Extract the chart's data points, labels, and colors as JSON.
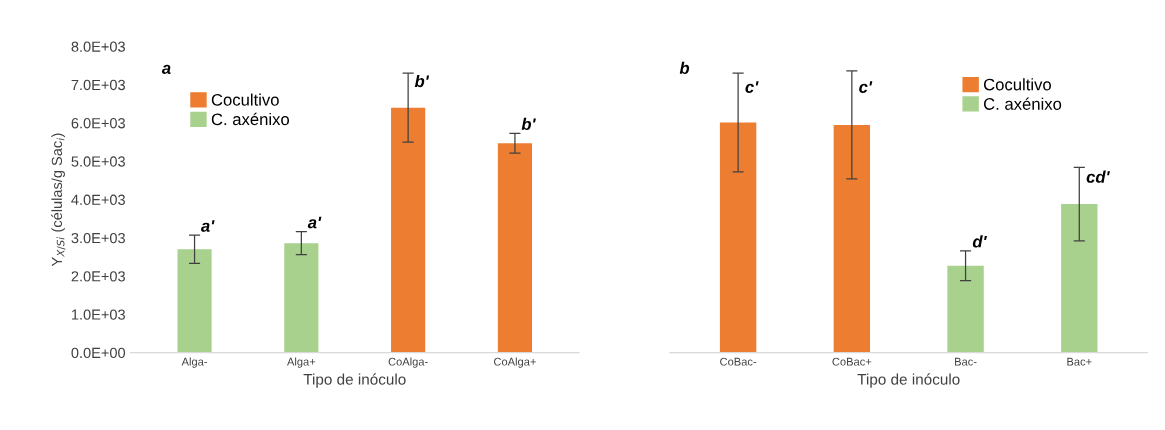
{
  "chart_data": [
    {
      "type": "bar",
      "categories": [
        "Alga-",
        "Alga+",
        "CoAlga-",
        "CoAlga+"
      ],
      "xlabel": "Tipo de inóculo",
      "ylabel": "Y$_{X/Si}$ (células/g Sac$_{i}$)",
      "series": [
        {
          "name": "Cocultivo",
          "color": "#ed7d31",
          "values": [
            null,
            null,
            6400,
            5470
          ],
          "errors": [
            null,
            null,
            900,
            260
          ]
        },
        {
          "name": "C. axénixo",
          "color": "#a9d18e",
          "values": [
            2700,
            2860,
            null,
            null
          ],
          "errors": [
            370,
            300,
            null,
            null
          ]
        }
      ],
      "ylim": [
        0,
        8000
      ],
      "yticks": [
        {
          "value": 0,
          "label": "0.0E+00"
        },
        {
          "value": 1000,
          "label": "1.0E+03"
        },
        {
          "value": 2000,
          "label": "2.0E+03"
        },
        {
          "value": 3000,
          "label": "3.0E+03"
        },
        {
          "value": 4000,
          "label": "4.0E+03"
        },
        {
          "value": 5000,
          "label": "5.0E+03"
        },
        {
          "value": 6000,
          "label": "6.0E+03"
        },
        {
          "value": 7000,
          "label": "7.0E+03"
        },
        {
          "value": 8000,
          "label": "8.0E+03"
        }
      ],
      "annotations": [
        "a",
        {
          "text": "a'",
          "x": "Alga-",
          "y": 3070
        },
        {
          "text": "a'",
          "x": "Alga+",
          "y": 3160
        },
        {
          "text": "b'",
          "x": "CoAlga-",
          "y": 6850
        },
        {
          "text": "b'",
          "x": "CoAlga+",
          "y": 5730
        }
      ],
      "legend": "top left",
      "grid": false
    },
    {
      "type": "bar",
      "categories": [
        "CoBac-",
        "CoBac+",
        "Bac-",
        "Bac+"
      ],
      "xlabel": "Tipo de inóculo",
      "series": [
        {
          "name": "Cocultivo",
          "color": "#ed7d31",
          "values": [
            6010,
            5950,
            null,
            null
          ],
          "errors": [
            1290,
            1410,
            null,
            null
          ]
        },
        {
          "name": "C. axénixo",
          "color": "#a9d18e",
          "values": [
            null,
            null,
            2270,
            3880
          ],
          "errors": [
            null,
            null,
            390,
            960
          ]
        }
      ],
      "ylim": [
        0,
        8000
      ],
      "tick_labels": "x",
      "annotations": [
        "b",
        {
          "text": "c'",
          "x": "CoBac-",
          "y": 6700
        },
        {
          "text": "c'",
          "x": "CoBac+",
          "y": 6700
        },
        {
          "text": "d'",
          "x": "Bac-",
          "y": 2660
        },
        {
          "text": "cd'",
          "x": "Bac+",
          "y": 4350
        }
      ],
      "legend": "top right",
      "grid": false
    }
  ]
}
